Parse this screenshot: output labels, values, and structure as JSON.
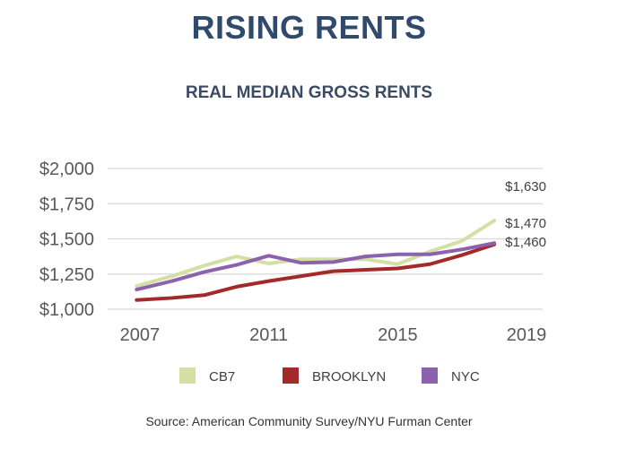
{
  "title": "RISING RENTS",
  "subtitle": "REAL MEDIAN GROSS RENTS",
  "source": "Source: American Community Survey/NYU Furman Center",
  "chart_data": {
    "type": "line",
    "title": "REAL MEDIAN GROSS RENTS",
    "xlabel": "",
    "ylabel": "",
    "xlim": [
      2006,
      2019.5
    ],
    "ylim": [
      1000,
      2000
    ],
    "x_ticks": [
      2007,
      2011,
      2015,
      2019
    ],
    "x_tick_labels": [
      "2007",
      "2011",
      "2015",
      "2019"
    ],
    "y_ticks": [
      1000,
      1250,
      1500,
      1750,
      2000
    ],
    "y_tick_labels": [
      "$1,000",
      "$1,250",
      "$1,500",
      "$1,750",
      "$2,000"
    ],
    "grid": true,
    "legend_position": "bottom",
    "x": [
      2006.9,
      2008,
      2009,
      2010,
      2011,
      2012,
      2013,
      2014,
      2015,
      2016,
      2017,
      2018
    ],
    "series": [
      {
        "name": "CB7",
        "color": "#d4dfa4",
        "values": [
          1165,
          1235,
          1310,
          1375,
          1325,
          1355,
          1355,
          1355,
          1320,
          1410,
          1485,
          1630
        ]
      },
      {
        "name": "BROOKLYN",
        "color": "#a32a2a",
        "values": [
          1065,
          1080,
          1100,
          1160,
          1200,
          1235,
          1270,
          1280,
          1290,
          1320,
          1385,
          1460
        ]
      },
      {
        "name": "NYC",
        "color": "#8c62ad",
        "values": [
          1140,
          1200,
          1265,
          1315,
          1380,
          1330,
          1335,
          1375,
          1390,
          1390,
          1425,
          1470
        ]
      }
    ],
    "end_labels": [
      {
        "series": "CB7",
        "text": "$1,630"
      },
      {
        "series": "NYC",
        "text": "$1,470"
      },
      {
        "series": "BROOKLYN",
        "text": "$1,460"
      }
    ]
  }
}
